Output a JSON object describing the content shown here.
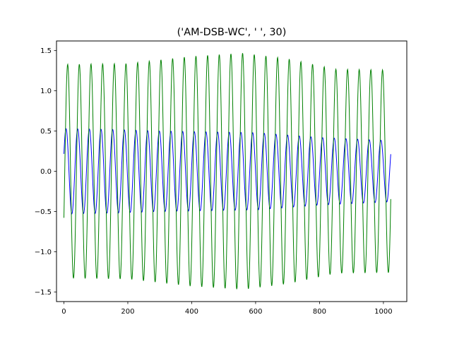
{
  "chart_data": {
    "type": "line",
    "title": "('AM-DSB-WC', '  ', 30)",
    "xlabel": "",
    "ylabel": "",
    "xlim": [
      -23.2,
      1073.2
    ],
    "ylim": [
      -1.62,
      1.62
    ],
    "xticks": [
      0,
      200,
      400,
      600,
      800,
      1000
    ],
    "yticks": [
      -1.5,
      -1.0,
      -0.5,
      0.0,
      0.5,
      1.0,
      1.5
    ],
    "xtick_labels": [
      "0",
      "200",
      "400",
      "600",
      "800",
      "1000"
    ],
    "ytick_labels": [
      "−1.5",
      "−1.0",
      "−0.5",
      "0.0",
      "0.5",
      "1.0",
      "1.5"
    ],
    "grid": false,
    "legend": "none",
    "series": [
      {
        "color": "#0000ff",
        "signal": {
          "n_samples": 1024,
          "period": 36.5,
          "phase": 0.42,
          "envelope_x": [
            0,
            150,
            300,
            600,
            800,
            1023
          ],
          "envelope_amplitude": [
            0.53,
            0.52,
            0.5,
            0.48,
            0.42,
            0.38
          ]
        }
      },
      {
        "color": "#008000",
        "signal": {
          "n_samples": 1024,
          "period": 36.5,
          "phase": -0.45,
          "envelope_x": [
            0,
            200,
            400,
            560,
            700,
            850,
            1023
          ],
          "envelope_amplitude": [
            1.33,
            1.34,
            1.43,
            1.47,
            1.4,
            1.27,
            1.26
          ]
        }
      }
    ]
  }
}
